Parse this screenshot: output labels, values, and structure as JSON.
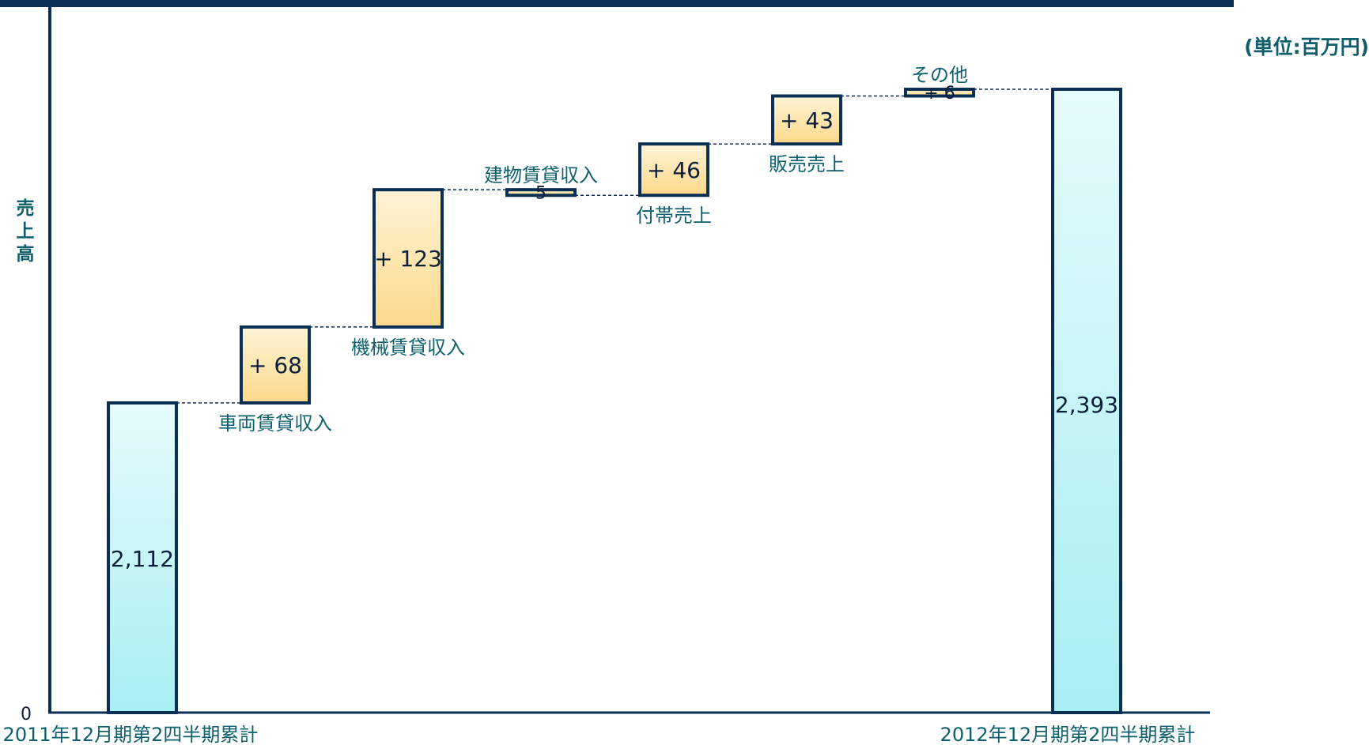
{
  "chart_data": {
    "type": "waterfall",
    "ylabel": "売上高",
    "unit_label": "(単位:百万円)",
    "y_tick_zero": "0",
    "ylim": [
      0,
      2400
    ],
    "start": {
      "category": "2011年12月期第2四半期累計",
      "value": 2112,
      "label": "2,112"
    },
    "steps": [
      {
        "name": "車両賃貸収入",
        "delta": 68,
        "label": "+ 68",
        "name_position": "below"
      },
      {
        "name": "機械賃貸収入",
        "delta": 123,
        "label": "+ 123",
        "name_position": "below"
      },
      {
        "name": "建物賃貸収入",
        "delta": -5,
        "label": "5",
        "name_position": "above"
      },
      {
        "name": "付帯売上",
        "delta": 46,
        "label": "+ 46",
        "name_position": "below"
      },
      {
        "name": "販売売上",
        "delta": 43,
        "label": "+ 43",
        "name_position": "below"
      },
      {
        "name": "その他",
        "delta": 6,
        "label": "+ 6",
        "name_position": "above"
      }
    ],
    "end": {
      "category": "2012年12月期第2四半期累計",
      "value": 2393,
      "label": "2,393"
    },
    "colors": {
      "total_fill_top": "#e6fbfc",
      "total_fill_bottom": "#a8eef2",
      "step_fill_top": "#fff3d6",
      "step_fill_bottom": "#fcd98a",
      "bar_border": "#0b2e55",
      "axis": "#0b2e55",
      "top_band": "#0b2e55",
      "text": "#0d5f6e"
    }
  }
}
